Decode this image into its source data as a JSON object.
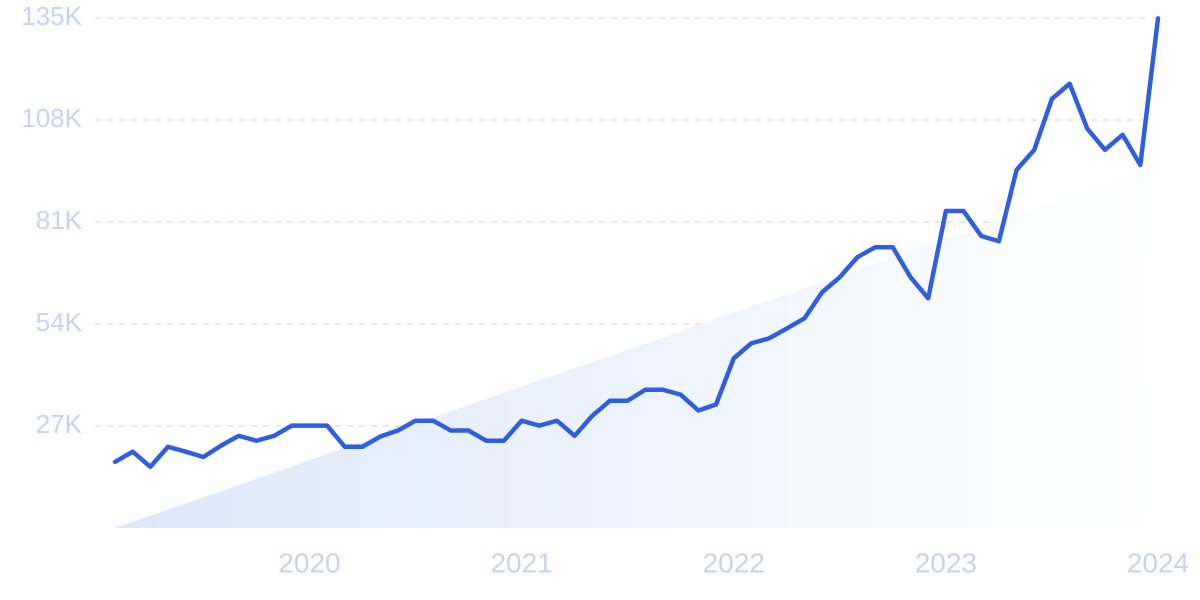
{
  "chart_data": {
    "type": "line",
    "categories": [
      null,
      null,
      null,
      null,
      null,
      null,
      null,
      null,
      null,
      null,
      null,
      "2020",
      null,
      null,
      null,
      null,
      null,
      null,
      null,
      null,
      null,
      null,
      null,
      "2021",
      null,
      null,
      null,
      null,
      null,
      null,
      null,
      null,
      null,
      null,
      null,
      "2022",
      null,
      null,
      null,
      null,
      null,
      null,
      null,
      null,
      null,
      null,
      null,
      "2023",
      null,
      null,
      null,
      null,
      null,
      null,
      null,
      null,
      null,
      null,
      null,
      "2024"
    ],
    "values": [
      17500,
      20200,
      16200,
      21500,
      20200,
      18800,
      21800,
      24400,
      23100,
      24400,
      27100,
      27100,
      27100,
      21500,
      21500,
      24200,
      25800,
      28400,
      28400,
      25800,
      25800,
      23100,
      23100,
      28400,
      27100,
      28400,
      24400,
      29700,
      33700,
      33700,
      36600,
      36600,
      35300,
      31100,
      32700,
      44900,
      48900,
      50200,
      52800,
      55500,
      62400,
      66400,
      71700,
      74300,
      74300,
      66400,
      60800,
      83900,
      83900,
      77300,
      75900,
      94800,
      100100,
      113600,
      117600,
      105700,
      100100,
      104100,
      96100,
      134900
    ],
    "color": "#2f5ee0",
    "trend": [
      0,
      96000
    ],
    "trend_color": "#dce8fb",
    "ylim": [
      0,
      135000
    ],
    "yticks": [
      {
        "value": 27000,
        "label": "27K"
      },
      {
        "value": 54000,
        "label": "54K"
      },
      {
        "value": 81000,
        "label": "81K"
      },
      {
        "value": 108000,
        "label": "108K"
      },
      {
        "value": 135000,
        "label": "135K"
      }
    ],
    "grid": true
  }
}
